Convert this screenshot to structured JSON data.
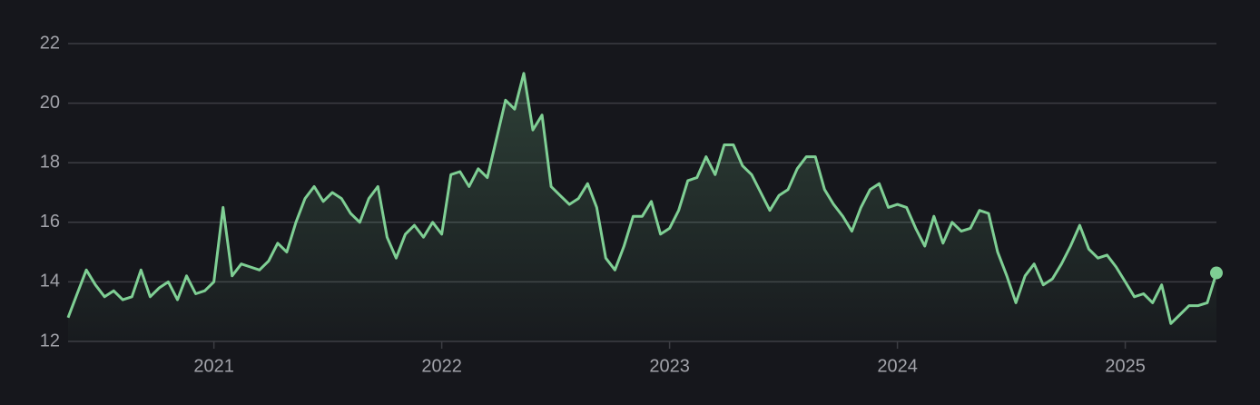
{
  "chart_data": {
    "type": "line",
    "color": "#7fcf94",
    "grid": true,
    "x": [
      2020.36,
      2020.4,
      2020.44,
      2020.48,
      2020.52,
      2020.56,
      2020.6,
      2020.64,
      2020.68,
      2020.72,
      2020.76,
      2020.8,
      2020.84,
      2020.88,
      2020.92,
      2020.96,
      2021,
      2021.04,
      2021.08,
      2021.12,
      2021.16,
      2021.2,
      2021.24,
      2021.28,
      2021.32,
      2021.36,
      2021.4,
      2021.44,
      2021.48,
      2021.52,
      2021.56,
      2021.6,
      2021.64,
      2021.68,
      2021.72,
      2021.76,
      2021.8,
      2021.84,
      2021.88,
      2021.92,
      2021.96,
      2022,
      2022.04,
      2022.08,
      2022.12,
      2022.16,
      2022.2,
      2022.24,
      2022.28,
      2022.32,
      2022.36,
      2022.4,
      2022.44,
      2022.48,
      2022.52,
      2022.56,
      2022.6,
      2022.64,
      2022.68,
      2022.72,
      2022.76,
      2022.8,
      2022.84,
      2022.88,
      2022.92,
      2022.96,
      2023,
      2023.04,
      2023.08,
      2023.12,
      2023.16,
      2023.2,
      2023.24,
      2023.28,
      2023.32,
      2023.36,
      2023.4,
      2023.44,
      2023.48,
      2023.52,
      2023.56,
      2023.6,
      2023.64,
      2023.68,
      2023.72,
      2023.76,
      2023.8,
      2023.84,
      2023.88,
      2023.92,
      2023.96,
      2024,
      2024.04,
      2024.08,
      2024.12,
      2024.16,
      2024.2,
      2024.24,
      2024.28,
      2024.32,
      2024.36,
      2024.4,
      2024.44,
      2024.48,
      2024.52,
      2024.56,
      2024.6,
      2024.64,
      2024.68,
      2024.72,
      2024.76,
      2024.8,
      2024.84,
      2024.88,
      2024.92,
      2024.96,
      2025,
      2025.04,
      2025.08,
      2025.12,
      2025.16,
      2025.2,
      2025.24,
      2025.28,
      2025.32,
      2025.36,
      2025.4
    ],
    "values": [
      12.8,
      13.6,
      14.4,
      13.9,
      13.5,
      13.7,
      13.4,
      13.5,
      14.4,
      13.5,
      13.8,
      14.0,
      13.4,
      14.2,
      13.6,
      13.7,
      14.0,
      16.5,
      14.2,
      14.6,
      14.5,
      14.4,
      14.7,
      15.3,
      15.0,
      16.0,
      16.8,
      17.2,
      16.7,
      17.0,
      16.8,
      16.3,
      16.0,
      16.8,
      17.2,
      15.5,
      14.8,
      15.6,
      15.9,
      15.5,
      16.0,
      15.6,
      17.6,
      17.7,
      17.2,
      17.8,
      17.5,
      18.8,
      20.1,
      19.8,
      21.0,
      19.1,
      19.6,
      17.2,
      16.9,
      16.6,
      16.8,
      17.3,
      16.5,
      14.8,
      14.4,
      15.2,
      16.2,
      16.2,
      16.7,
      15.6,
      15.8,
      16.4,
      17.4,
      17.5,
      18.2,
      17.6,
      18.6,
      18.6,
      17.9,
      17.6,
      17.0,
      16.4,
      16.9,
      17.1,
      17.8,
      18.2,
      18.2,
      17.1,
      16.6,
      16.2,
      15.7,
      16.5,
      17.1,
      17.3,
      16.5,
      16.6,
      16.5,
      15.8,
      15.2,
      16.2,
      15.3,
      16.0,
      15.7,
      15.8,
      16.4,
      16.3,
      15.0,
      14.2,
      13.3,
      14.2,
      14.6,
      13.9,
      14.1,
      14.6,
      15.2,
      15.9,
      15.1,
      14.8,
      14.9,
      14.5,
      14.0,
      13.5,
      13.6,
      13.3,
      13.9,
      12.6,
      12.9,
      13.2,
      13.2,
      13.3,
      14.3
    ],
    "xlim": [
      2020.36,
      2025.42
    ],
    "xticks": [
      2021,
      2022,
      2023,
      2024,
      2025
    ],
    "ylim": [
      12,
      22
    ],
    "yticks": [
      12,
      14,
      16,
      18,
      20,
      22
    ]
  }
}
